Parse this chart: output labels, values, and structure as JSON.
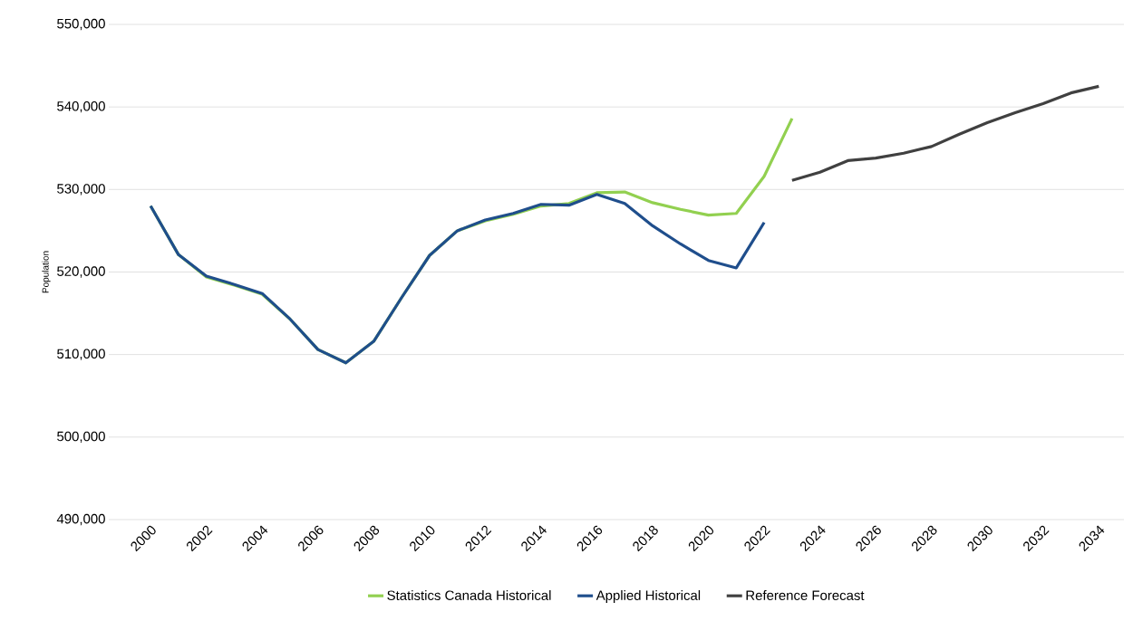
{
  "chart_data": {
    "type": "line",
    "ylabel": "Population",
    "x": [
      2000,
      2001,
      2002,
      2003,
      2004,
      2005,
      2006,
      2007,
      2008,
      2009,
      2010,
      2011,
      2012,
      2013,
      2014,
      2015,
      2016,
      2017,
      2018,
      2019,
      2020,
      2021,
      2022,
      2023
    ],
    "series": [
      {
        "name": "Statistics Canada Historical",
        "color": "#92d050",
        "values": [
          528000,
          522100,
          519400,
          518400,
          517300,
          514300,
          510600,
          509000,
          511600,
          516900,
          522000,
          525000,
          526200,
          527000,
          528000,
          528300,
          529600,
          529700,
          528400,
          527600,
          526900,
          527100,
          531600,
          538600
        ]
      },
      {
        "name": "Applied Historical",
        "color": "#1f4e8c",
        "values": [
          528000,
          522100,
          519500,
          518500,
          517400,
          514300,
          510600,
          509000,
          511600,
          516900,
          522000,
          525000,
          526300,
          527100,
          528200,
          528100,
          529400,
          528300,
          525600,
          523400,
          521400,
          520500,
          526000,
          null
        ]
      },
      {
        "name": "Reference Forecast",
        "color": "#404040",
        "x": [
          2023,
          2024,
          2025,
          2026,
          2027,
          2028,
          2029,
          2030,
          2031,
          2032,
          2033,
          2034
        ],
        "values": [
          531100,
          532100,
          533500,
          533800,
          534400,
          535200,
          536700,
          538100,
          539300,
          540400,
          541700,
          542500
        ]
      }
    ],
    "xlim": [
      1998.5,
      2034.9
    ],
    "xticks": [
      2000,
      2002,
      2004,
      2006,
      2008,
      2010,
      2012,
      2014,
      2016,
      2018,
      2020,
      2022,
      2024,
      2026,
      2028,
      2030,
      2032,
      2034
    ],
    "ylim": [
      490000,
      550000
    ],
    "yticks": [
      {
        "value": 490000,
        "label": "490,000"
      },
      {
        "value": 500000,
        "label": "500,000"
      },
      {
        "value": 510000,
        "label": "510,000"
      },
      {
        "value": 520000,
        "label": "520,000"
      },
      {
        "value": 530000,
        "label": "530,000"
      },
      {
        "value": 540000,
        "label": "540,000"
      },
      {
        "value": 550000,
        "label": "550,000"
      }
    ],
    "grid": "y",
    "legend": "bottom",
    "marker": "none",
    "line_style": "solid"
  }
}
